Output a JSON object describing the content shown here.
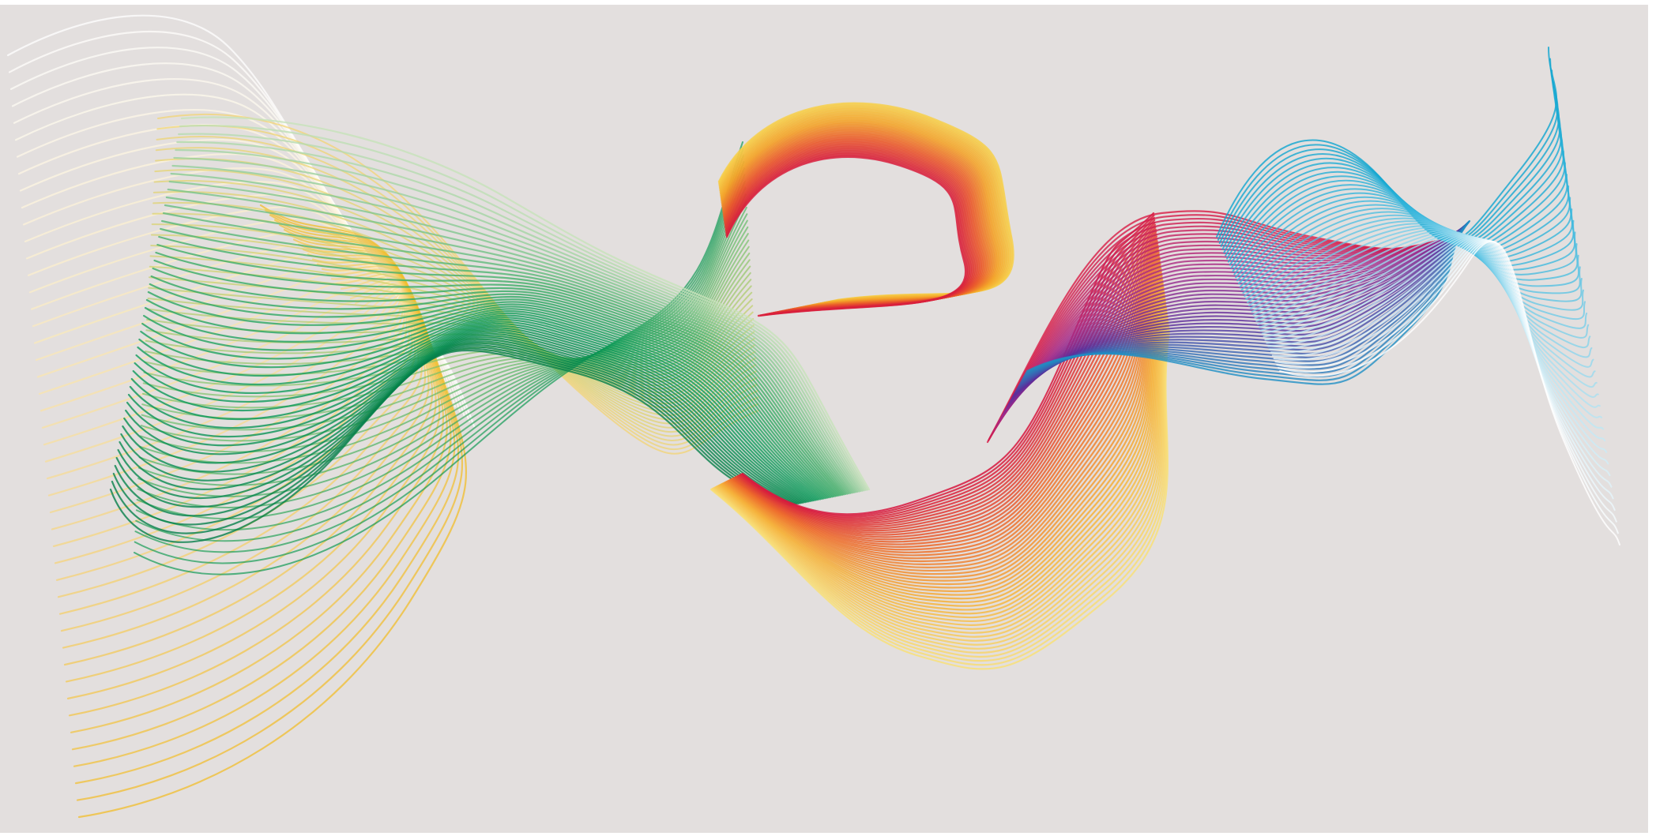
{
  "canvas": {
    "background": "#e3dfde",
    "frame_color": "#ffffff"
  },
  "ribbons": [
    {
      "name": "cream-yellow-left-ribbon",
      "palette": [
        "#ffffff",
        "#fbecc4",
        "#f5d37a",
        "#f1bd2b"
      ]
    },
    {
      "name": "yellow-green-swirl-ribbon",
      "palette": [
        "#f3d36c",
        "#cfd26a",
        "#6fbf6a",
        "#119a55"
      ]
    },
    {
      "name": "green-wave-ribbon",
      "palette": [
        "#c6e2b9",
        "#3fae67",
        "#0b9a5a",
        "#067f4a"
      ]
    },
    {
      "name": "orange-red-loop-ribbon",
      "palette": [
        "#f7d04a",
        "#f3a329",
        "#ea5a2c",
        "#d81f3c"
      ]
    },
    {
      "name": "yellow-orange-red-band-ribbon",
      "palette": [
        "#f8e07a",
        "#f6b23a",
        "#ed6a2a",
        "#d7193f"
      ]
    },
    {
      "name": "magenta-purple-blue-ribbon",
      "palette": [
        "#d81b45",
        "#a42a8a",
        "#5a2f9c",
        "#1e8fc4"
      ]
    },
    {
      "name": "cyan-blue-right-ribbon",
      "palette": [
        "#0ea5cf",
        "#3cb8dd",
        "#9fdcef",
        "#ffffff"
      ]
    }
  ]
}
